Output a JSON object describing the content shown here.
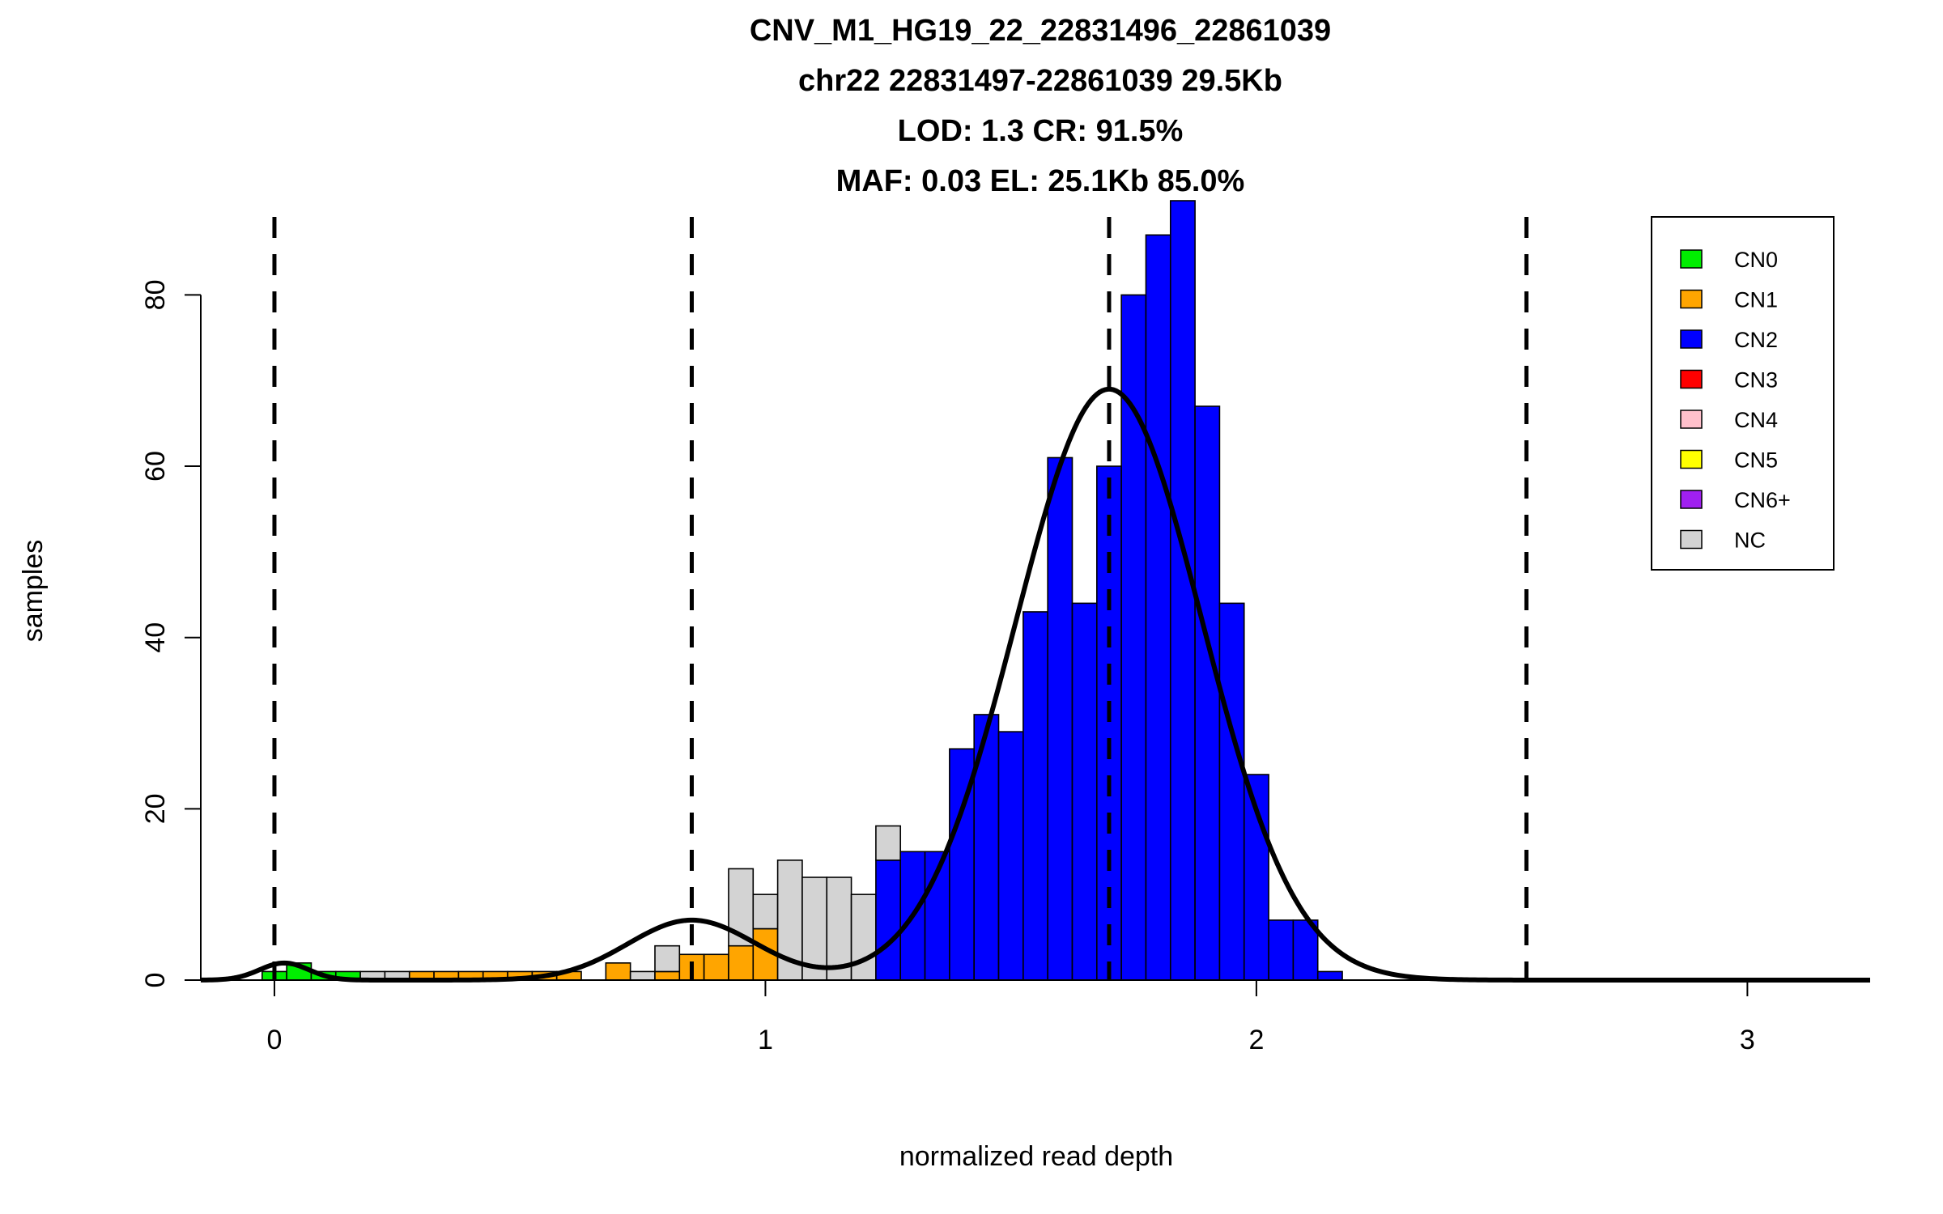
{
  "chart_data": {
    "type": "bar",
    "title_lines": [
      "CNV_M1_HG19_22_22831496_22861039",
      "chr22 22831497-22861039 29.5Kb",
      "LOD: 1.3 CR: 91.5%",
      "MAF: 0.03 EL: 25.1Kb 85.0%"
    ],
    "xlabel": "normalized read depth",
    "ylabel": "samples",
    "xlim": [
      -0.15,
      3.25
    ],
    "ylim": [
      0,
      91
    ],
    "xticks": [
      "0",
      "1",
      "2",
      "3"
    ],
    "yticks": [
      "0",
      "20",
      "40",
      "60",
      "80"
    ],
    "bin_width": 0.05,
    "legend": {
      "position": "top-right",
      "items": [
        {
          "label": "CN0",
          "color": "#00ee00"
        },
        {
          "label": "CN1",
          "color": "#ffa500"
        },
        {
          "label": "CN2",
          "color": "#0000ff"
        },
        {
          "label": "CN3",
          "color": "#ff0000"
        },
        {
          "label": "CN4",
          "color": "#ffc0cb"
        },
        {
          "label": "CN5",
          "color": "#ffff00"
        },
        {
          "label": "CN6+",
          "color": "#a020f0"
        },
        {
          "label": "NC",
          "color": "#d3d3d3"
        }
      ]
    },
    "dashed_lines_x": [
      0.0,
      0.85,
      1.7,
      2.55
    ],
    "bars": [
      {
        "x0": -0.025,
        "x1": 0.025,
        "y": 1,
        "cat": "CN0"
      },
      {
        "x0": 0.025,
        "x1": 0.075,
        "y": 2,
        "cat": "CN0"
      },
      {
        "x0": 0.075,
        "x1": 0.125,
        "y": 1,
        "cat": "CN0"
      },
      {
        "x0": 0.125,
        "x1": 0.175,
        "y": 1,
        "cat": "CN0"
      },
      {
        "x0": 0.175,
        "x1": 0.225,
        "y": 1,
        "cat": "NC"
      },
      {
        "x0": 0.225,
        "x1": 0.275,
        "y": 1,
        "cat": "NC"
      },
      {
        "x0": 0.275,
        "x1": 0.325,
        "y": 1,
        "cat": "CN1"
      },
      {
        "x0": 0.325,
        "x1": 0.375,
        "y": 1,
        "cat": "CN1"
      },
      {
        "x0": 0.375,
        "x1": 0.425,
        "y": 1,
        "cat": "CN1"
      },
      {
        "x0": 0.425,
        "x1": 0.475,
        "y": 1,
        "cat": "CN1"
      },
      {
        "x0": 0.475,
        "x1": 0.525,
        "y": 1,
        "cat": "CN1"
      },
      {
        "x0": 0.525,
        "x1": 0.575,
        "y": 1,
        "cat": "CN1"
      },
      {
        "x0": 0.575,
        "x1": 0.625,
        "y": 1,
        "cat": "CN1"
      },
      {
        "x0": 0.675,
        "x1": 0.725,
        "y": 2,
        "cat": "CN1"
      },
      {
        "x0": 0.725,
        "x1": 0.775,
        "y": 1,
        "cat": "NC"
      },
      {
        "x0": 0.775,
        "x1": 0.825,
        "y": 1,
        "cat": "CN1"
      },
      {
        "x0": 0.775,
        "x1": 0.825,
        "y0": 1,
        "y": 4,
        "cat": "NC"
      },
      {
        "x0": 0.825,
        "x1": 0.875,
        "y": 3,
        "cat": "CN1"
      },
      {
        "x0": 0.875,
        "x1": 0.925,
        "y": 3,
        "cat": "CN1"
      },
      {
        "x0": 0.925,
        "x1": 0.975,
        "y": 4,
        "cat": "CN1"
      },
      {
        "x0": 0.925,
        "x1": 0.975,
        "y0": 4,
        "y": 13,
        "cat": "NC"
      },
      {
        "x0": 0.975,
        "x1": 1.025,
        "y": 6,
        "cat": "CN1"
      },
      {
        "x0": 0.975,
        "x1": 1.025,
        "y0": 6,
        "y": 10,
        "cat": "NC"
      },
      {
        "x0": 1.025,
        "x1": 1.075,
        "y": 14,
        "cat": "NC"
      },
      {
        "x0": 1.075,
        "x1": 1.125,
        "y": 12,
        "cat": "NC"
      },
      {
        "x0": 1.125,
        "x1": 1.175,
        "y": 12,
        "cat": "NC"
      },
      {
        "x0": 1.175,
        "x1": 1.225,
        "y": 10,
        "cat": "NC"
      },
      {
        "x0": 1.225,
        "x1": 1.275,
        "y": 14,
        "cat": "CN2"
      },
      {
        "x0": 1.225,
        "x1": 1.275,
        "y0": 14,
        "y": 18,
        "cat": "NC"
      },
      {
        "x0": 1.275,
        "x1": 1.325,
        "y": 15,
        "cat": "CN2"
      },
      {
        "x0": 1.325,
        "x1": 1.375,
        "y": 15,
        "cat": "CN2"
      },
      {
        "x0": 1.375,
        "x1": 1.425,
        "y": 27,
        "cat": "CN2"
      },
      {
        "x0": 1.425,
        "x1": 1.475,
        "y": 31,
        "cat": "CN2"
      },
      {
        "x0": 1.475,
        "x1": 1.525,
        "y": 29,
        "cat": "CN2"
      },
      {
        "x0": 1.525,
        "x1": 1.575,
        "y": 43,
        "cat": "CN2"
      },
      {
        "x0": 1.575,
        "x1": 1.625,
        "y": 61,
        "cat": "CN2"
      },
      {
        "x0": 1.625,
        "x1": 1.675,
        "y": 44,
        "cat": "CN2"
      },
      {
        "x0": 1.675,
        "x1": 1.725,
        "y": 60,
        "cat": "CN2"
      },
      {
        "x0": 1.725,
        "x1": 1.775,
        "y": 80,
        "cat": "CN2"
      },
      {
        "x0": 1.775,
        "x1": 1.825,
        "y": 87,
        "cat": "CN2"
      },
      {
        "x0": 1.825,
        "x1": 1.875,
        "y": 91,
        "cat": "CN2"
      },
      {
        "x0": 1.875,
        "x1": 1.925,
        "y": 67,
        "cat": "CN2"
      },
      {
        "x0": 1.925,
        "x1": 1.975,
        "y": 44,
        "cat": "CN2"
      },
      {
        "x0": 1.975,
        "x1": 2.025,
        "y": 24,
        "cat": "CN2"
      },
      {
        "x0": 2.025,
        "x1": 2.075,
        "y": 7,
        "cat": "CN2"
      },
      {
        "x0": 2.075,
        "x1": 2.125,
        "y": 7,
        "cat": "CN2"
      },
      {
        "x0": 2.125,
        "x1": 2.175,
        "y": 1,
        "cat": "CN2"
      }
    ],
    "mixture_curve": {
      "components": [
        {
          "mean": 0.02,
          "sd": 0.05,
          "peak": 2
        },
        {
          "mean": 0.85,
          "sd": 0.13,
          "peak": 7
        },
        {
          "mean": 1.7,
          "sd": 0.19,
          "peak": 69
        }
      ],
      "x_range": [
        -0.15,
        3.25
      ]
    }
  }
}
